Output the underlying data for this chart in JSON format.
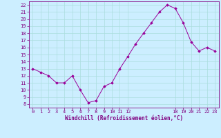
{
  "x": [
    0,
    1,
    2,
    3,
    4,
    5,
    6,
    7,
    8,
    9,
    10,
    11,
    12,
    13,
    14,
    15,
    16,
    17,
    18,
    19,
    20,
    21,
    22,
    23
  ],
  "y": [
    13.0,
    12.5,
    12.0,
    11.0,
    11.0,
    12.0,
    10.0,
    8.2,
    8.5,
    10.5,
    11.0,
    13.0,
    14.7,
    16.5,
    18.0,
    19.5,
    21.0,
    22.0,
    21.5,
    19.5,
    16.8,
    15.5,
    16.0,
    15.5
  ],
  "line_color": "#990099",
  "marker": "D",
  "marker_size": 1.8,
  "bg_color": "#cceeff",
  "grid_color": "#aadddd",
  "tick_color": "#800080",
  "xlabel": "Windchill (Refroidissement éolien,°C)",
  "xlabel_color": "#800080",
  "ylim": [
    7.5,
    22.5
  ],
  "yticks": [
    8,
    9,
    10,
    11,
    12,
    13,
    14,
    15,
    16,
    17,
    18,
    19,
    20,
    21,
    22
  ],
  "xticks": [
    0,
    1,
    2,
    3,
    4,
    5,
    6,
    7,
    8,
    9,
    10,
    11,
    12,
    18,
    19,
    20,
    21,
    22,
    23
  ],
  "spine_color": "#800080"
}
